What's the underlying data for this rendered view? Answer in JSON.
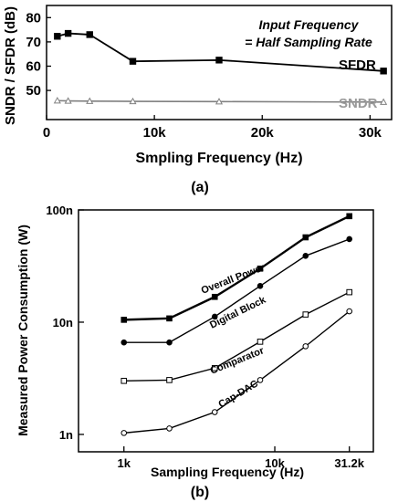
{
  "chart_data": [
    {
      "type": "line",
      "panel_label": "(a)",
      "xlabel": "Smpling Frequency (Hz)",
      "ylabel": "SNDR / SFDR (dB)",
      "xlim": [
        0,
        32000
      ],
      "ylim": [
        38,
        85
      ],
      "xticks": [
        0,
        10000,
        20000,
        30000
      ],
      "xtick_labels": [
        "0",
        "10k",
        "20k",
        "30k"
      ],
      "yticks": [
        50,
        60,
        70,
        80
      ],
      "ytick_labels": [
        "50",
        "60",
        "70",
        "80"
      ],
      "grid": false,
      "annotation": [
        "Input Frequency",
        "= Half Sampling Rate"
      ],
      "series": [
        {
          "name": "SFDR",
          "marker": "filled-square",
          "color": "#000000",
          "x": [
            1000,
            2000,
            4000,
            8000,
            16000,
            31250
          ],
          "y": [
            72.3,
            73.5,
            73.0,
            62.0,
            62.5,
            58.0
          ]
        },
        {
          "name": "SNDR",
          "marker": "open-triangle",
          "color": "#808080",
          "x": [
            1000,
            2000,
            4000,
            8000,
            16000,
            31250
          ],
          "y": [
            45.8,
            45.7,
            45.6,
            45.5,
            45.4,
            45.2
          ]
        }
      ]
    },
    {
      "type": "line",
      "panel_label": "(b)",
      "xlabel": "Sampling Frequency (Hz)",
      "ylabel": "Measured Power Consumption (W)",
      "xscale": "log",
      "yscale": "log",
      "xlim": [
        500,
        45000
      ],
      "ylim": [
        7e-10,
        1e-07
      ],
      "xticks": [
        1000,
        10000,
        31200
      ],
      "xtick_labels": [
        "1k",
        "10k",
        "31.2k"
      ],
      "yticks": [
        1e-09,
        1e-08,
        1e-07
      ],
      "ytick_labels": [
        "1n",
        "10n",
        "100n"
      ],
      "grid": false,
      "series": [
        {
          "name": "Overall Power",
          "marker": "filled-square",
          "color": "#000000",
          "x": [
            1000,
            2000,
            4000,
            8000,
            16000,
            31200
          ],
          "y": [
            1.05e-08,
            1.08e-08,
            1.68e-08,
            3e-08,
            5.7e-08,
            8.8e-08
          ]
        },
        {
          "name": "Digital Block",
          "marker": "filled-circle",
          "color": "#000000",
          "x": [
            1000,
            2000,
            4000,
            8000,
            16000,
            31200
          ],
          "y": [
            6.6e-09,
            6.6e-09,
            1.12e-08,
            2.1e-08,
            3.9e-08,
            5.5e-08
          ]
        },
        {
          "name": "Comparator",
          "marker": "open-square",
          "color": "#000000",
          "x": [
            1000,
            2000,
            4000,
            8000,
            16000,
            31200
          ],
          "y": [
            3e-09,
            3.05e-09,
            3.9e-09,
            6.7e-09,
            1.17e-08,
            1.85e-08
          ]
        },
        {
          "name": "Cap-DAC",
          "marker": "open-circle",
          "color": "#000000",
          "x": [
            1000,
            2000,
            4000,
            8000,
            16000,
            31200
          ],
          "y": [
            1.03e-09,
            1.13e-09,
            1.58e-09,
            3.05e-09,
            6.1e-09,
            1.25e-08
          ]
        }
      ]
    }
  ]
}
